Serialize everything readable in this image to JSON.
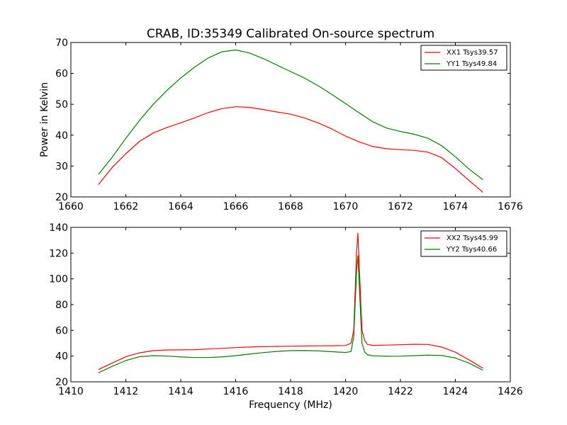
{
  "chart_data": [
    {
      "type": "line",
      "title": "CRAB, ID:35349 Calibrated On-source spectrum",
      "xlabel": "",
      "ylabel": "Power in Kelvin",
      "xlim": [
        1660,
        1676
      ],
      "ylim": [
        20,
        70
      ],
      "xticks": [
        1660,
        1662,
        1664,
        1666,
        1668,
        1670,
        1672,
        1674,
        1676
      ],
      "yticks": [
        20,
        30,
        40,
        50,
        60,
        70
      ],
      "legend": "top-right",
      "grid": false,
      "series": [
        {
          "name": "XX1 Tsys39.57",
          "color": "#ff0000",
          "x": [
            1661.0,
            1661.5,
            1662.0,
            1662.5,
            1663.0,
            1663.5,
            1664.0,
            1664.5,
            1665.0,
            1665.5,
            1666.0,
            1666.5,
            1667.0,
            1667.5,
            1668.0,
            1668.5,
            1669.0,
            1669.5,
            1670.0,
            1670.5,
            1671.0,
            1671.5,
            1672.0,
            1672.5,
            1673.0,
            1673.5,
            1674.0,
            1674.5,
            1675.0
          ],
          "y": [
            24.0,
            29.5,
            34.0,
            38.0,
            40.7,
            42.5,
            44.0,
            45.6,
            47.3,
            48.6,
            49.2,
            49.0,
            48.3,
            47.5,
            46.8,
            45.6,
            44.0,
            42.0,
            39.7,
            37.8,
            36.3,
            35.6,
            35.3,
            35.1,
            34.5,
            32.7,
            29.2,
            25.3,
            21.5
          ]
        },
        {
          "name": "YY1 Tsys49.84",
          "color": "#008000",
          "x": [
            1661.0,
            1661.5,
            1662.0,
            1662.5,
            1663.0,
            1663.5,
            1664.0,
            1664.5,
            1665.0,
            1665.5,
            1666.0,
            1666.5,
            1667.0,
            1667.5,
            1668.0,
            1668.5,
            1669.0,
            1669.5,
            1670.0,
            1670.5,
            1671.0,
            1671.5,
            1672.0,
            1672.5,
            1673.0,
            1673.5,
            1674.0,
            1674.5,
            1675.0
          ],
          "y": [
            27.3,
            32.8,
            39.0,
            44.8,
            50.0,
            54.5,
            58.5,
            62.0,
            65.0,
            67.0,
            67.6,
            66.6,
            64.8,
            62.7,
            60.6,
            58.5,
            56.0,
            53.2,
            50.2,
            47.2,
            44.3,
            42.3,
            41.2,
            40.3,
            39.0,
            36.6,
            33.0,
            29.0,
            25.6
          ]
        }
      ]
    },
    {
      "type": "line",
      "title": "",
      "xlabel": "Frequency (MHz)",
      "ylabel": "",
      "xlim": [
        1410,
        1426
      ],
      "ylim": [
        20,
        140
      ],
      "xticks": [
        1410,
        1412,
        1414,
        1416,
        1418,
        1420,
        1422,
        1424,
        1426
      ],
      "yticks": [
        20,
        40,
        60,
        80,
        100,
        120,
        140
      ],
      "legend": "top-right",
      "grid": false,
      "series": [
        {
          "name": "XX2 Tsys45.99",
          "color": "#ff0000",
          "x": [
            1411.0,
            1411.5,
            1412.0,
            1412.5,
            1413.0,
            1413.5,
            1414.0,
            1414.5,
            1415.0,
            1415.5,
            1416.0,
            1416.5,
            1417.0,
            1417.5,
            1418.0,
            1418.5,
            1419.0,
            1419.5,
            1420.0,
            1420.2,
            1420.3,
            1420.4,
            1420.45,
            1420.5,
            1420.6,
            1420.7,
            1420.8,
            1421.0,
            1421.5,
            1422.0,
            1422.5,
            1423.0,
            1423.5,
            1424.0,
            1424.5,
            1425.0
          ],
          "y": [
            29.5,
            34.5,
            39.5,
            42.5,
            44.2,
            44.7,
            44.8,
            45.0,
            45.5,
            46.0,
            46.6,
            47.0,
            47.3,
            47.5,
            47.7,
            47.8,
            47.9,
            48.0,
            48.2,
            50.0,
            60.0,
            120.0,
            135.5,
            110.0,
            60.0,
            52.0,
            49.0,
            48.3,
            48.5,
            48.8,
            49.2,
            49.0,
            47.0,
            43.0,
            37.0,
            30.5
          ]
        },
        {
          "name": "YY2 Tsys40.66",
          "color": "#008000",
          "x": [
            1411.0,
            1411.5,
            1412.0,
            1412.5,
            1413.0,
            1413.5,
            1414.0,
            1414.5,
            1415.0,
            1415.5,
            1416.0,
            1416.5,
            1417.0,
            1417.5,
            1418.0,
            1418.5,
            1419.0,
            1419.5,
            1420.0,
            1420.2,
            1420.3,
            1420.4,
            1420.45,
            1420.5,
            1420.6,
            1420.7,
            1420.8,
            1421.0,
            1421.5,
            1422.0,
            1422.5,
            1423.0,
            1423.5,
            1424.0,
            1424.5,
            1425.0
          ],
          "y": [
            27.0,
            32.0,
            36.5,
            39.5,
            40.3,
            40.0,
            39.3,
            38.9,
            38.9,
            39.3,
            40.3,
            41.5,
            42.7,
            43.6,
            44.2,
            44.3,
            44.0,
            43.4,
            42.8,
            43.5,
            55.0,
            105.0,
            118.0,
            95.0,
            50.0,
            43.0,
            41.0,
            40.2,
            39.8,
            39.9,
            40.3,
            40.7,
            40.4,
            38.5,
            34.5,
            29.0
          ]
        }
      ]
    }
  ]
}
